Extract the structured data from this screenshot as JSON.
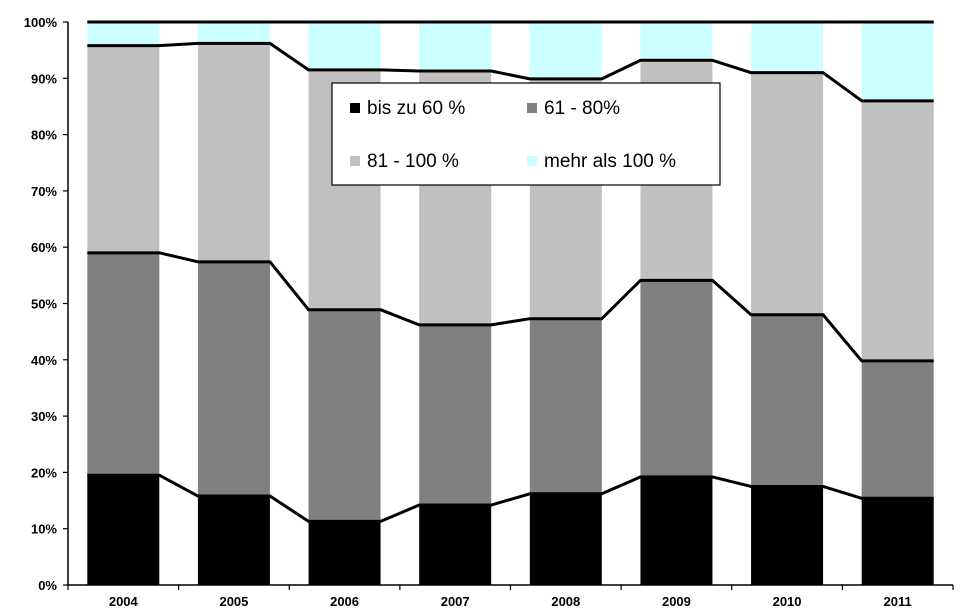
{
  "chart_data": {
    "type": "bar",
    "stacked": true,
    "categories": [
      "2004",
      "2005",
      "2006",
      "2007",
      "2008",
      "2009",
      "2010",
      "2011"
    ],
    "series": [
      {
        "name": "bis zu 60 %",
        "color": "#000000",
        "values": [
          19.5,
          15.8,
          11.3,
          14.2,
          16.2,
          19.2,
          17.5,
          15.4
        ]
      },
      {
        "name": "61 - 80%",
        "color": "#808080",
        "values": [
          39.5,
          41.6,
          37.6,
          32.0,
          31.1,
          34.9,
          30.5,
          24.4
        ]
      },
      {
        "name": "81 - 100 %",
        "color": "#c0c0c0",
        "values": [
          36.8,
          38.8,
          42.6,
          45.1,
          42.6,
          39.1,
          43.0,
          46.2
        ]
      },
      {
        "name": "mehr als 100 %",
        "color": "#ccffff",
        "values": [
          4.2,
          3.8,
          8.5,
          8.7,
          10.1,
          6.8,
          9.0,
          14.0
        ]
      }
    ],
    "y_ticks": [
      "0%",
      "10%",
      "20%",
      "30%",
      "40%",
      "50%",
      "60%",
      "70%",
      "80%",
      "90%",
      "100%"
    ],
    "ylim": [
      0,
      100
    ],
    "grid": false,
    "series_lines": true,
    "legend": {
      "placement": "top-center",
      "columns": 2
    },
    "title": "",
    "xlabel": "",
    "ylabel": ""
  }
}
